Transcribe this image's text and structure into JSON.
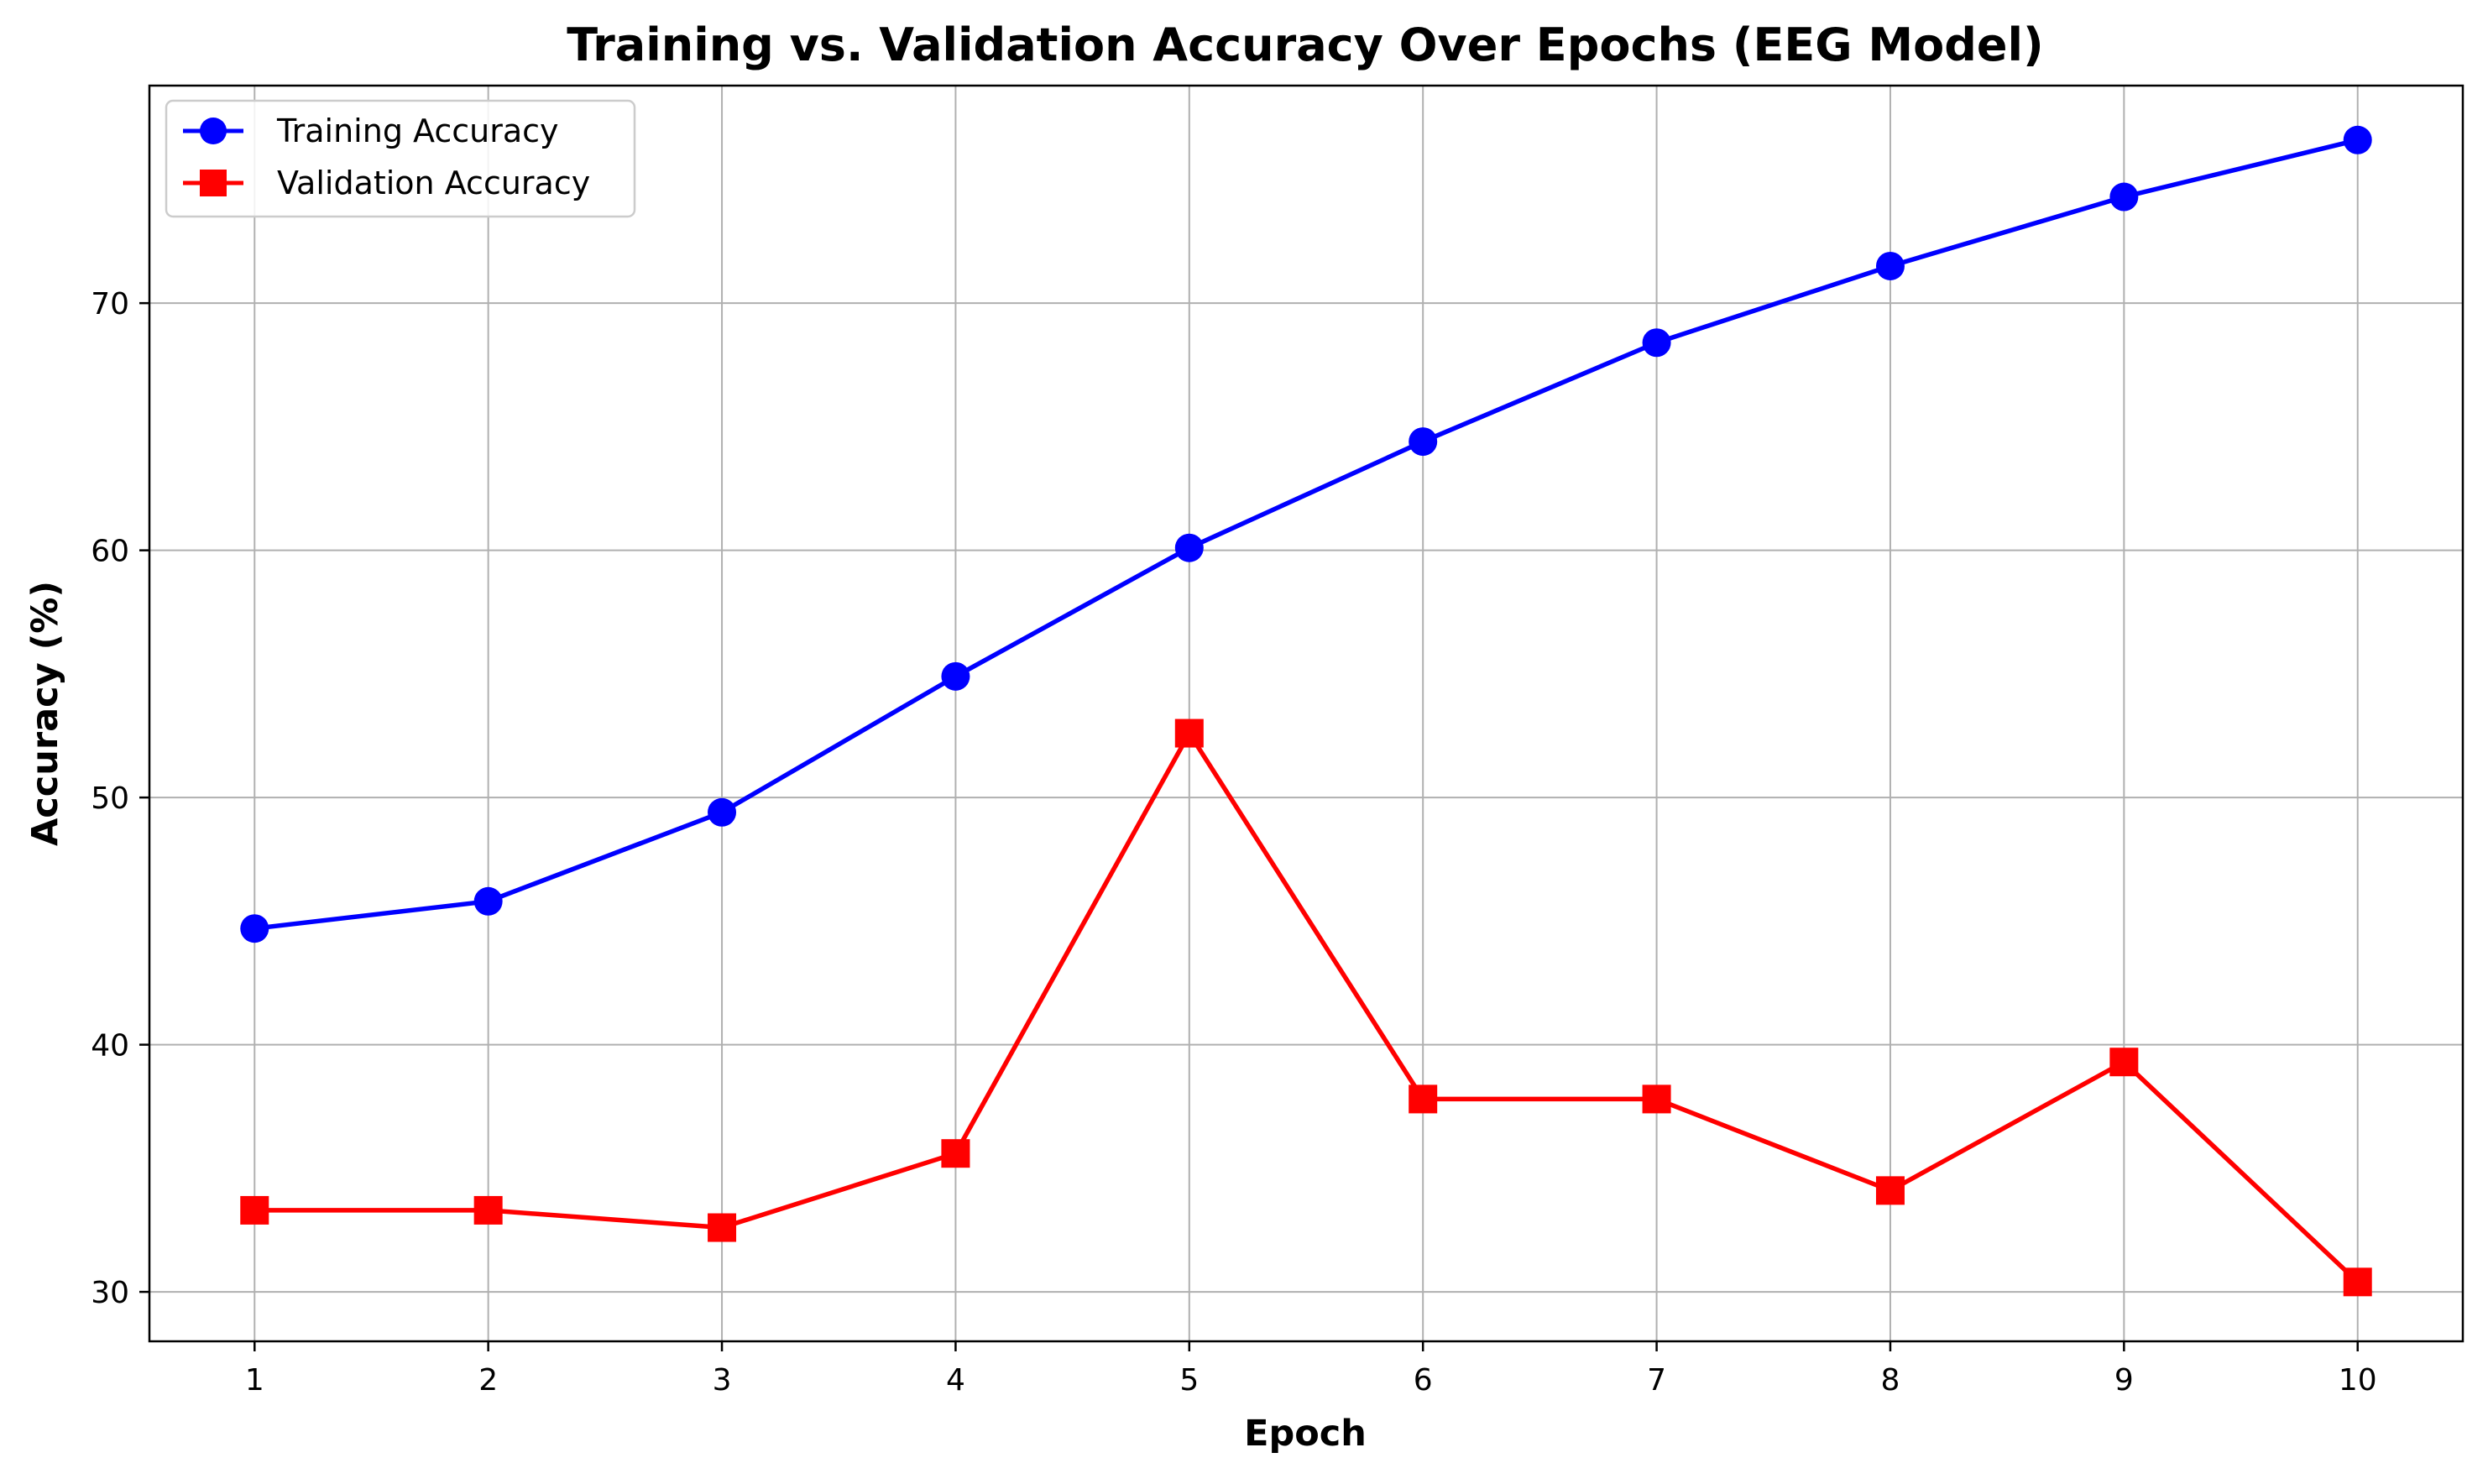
{
  "chart_data": {
    "type": "line",
    "title": "Training vs. Validation Accuracy Over Epochs (EEG Model)",
    "xlabel": "Epoch",
    "ylabel": "Accuracy (%)",
    "x": [
      1,
      2,
      3,
      4,
      5,
      6,
      7,
      8,
      9,
      10
    ],
    "x_ticks": [
      "1",
      "2",
      "3",
      "4",
      "5",
      "6",
      "7",
      "8",
      "9",
      "10"
    ],
    "xlim": [
      0.55,
      10.45
    ],
    "y_ticks": [
      "30",
      "40",
      "50",
      "60",
      "70"
    ],
    "ylim": [
      28.0,
      78.8
    ],
    "grid": true,
    "legend_position": "top-left",
    "series": [
      {
        "name": "Training Accuracy",
        "marker": "circle",
        "color": "#0000ff",
        "values": [
          44.7,
          45.8,
          49.4,
          54.9,
          60.1,
          64.4,
          68.4,
          71.5,
          74.3,
          76.6
        ]
      },
      {
        "name": "Validation Accuracy",
        "marker": "square",
        "color": "#ff0000",
        "values": [
          33.3,
          33.3,
          32.6,
          35.6,
          52.6,
          37.8,
          37.8,
          34.1,
          39.3,
          30.4
        ]
      }
    ]
  }
}
